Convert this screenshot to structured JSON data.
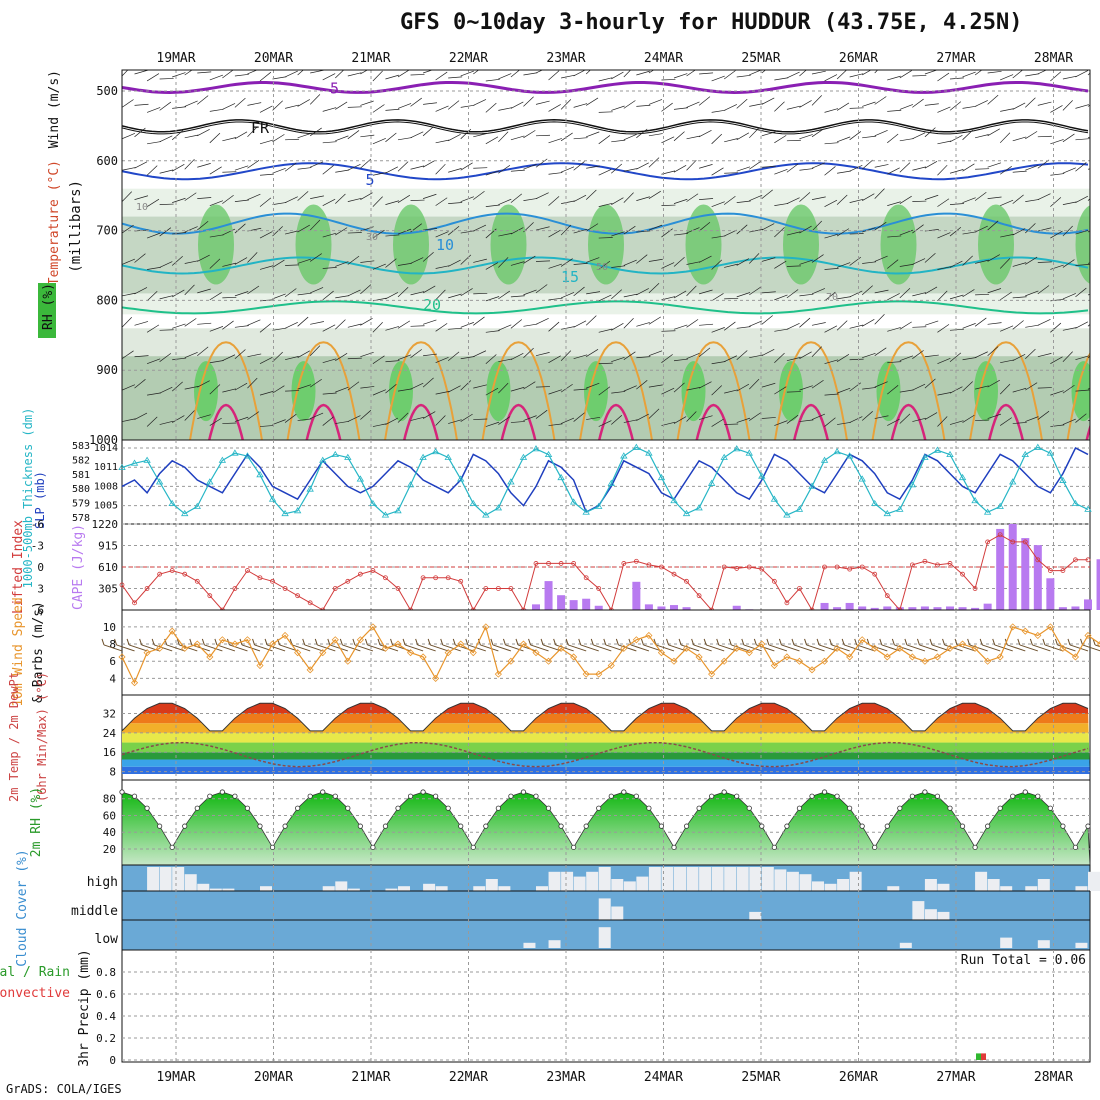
{
  "title": "GFS 0~10day 3-hourly for HUDDUR (43.75E, 4.25N)",
  "credit": "GrADS: COLA/IGES",
  "colors": {
    "grid": "#9a9a9a",
    "slp": "#1f3fbf",
    "thickness": "#26b6c6",
    "lifted": "#d23b3b",
    "cape": "#b87af0",
    "wind10": "#e8952c",
    "barb": "#6b4e2a",
    "rhLine": "#2a8a2a",
    "cloud": "#6aa9d6",
    "cloudFill": "#eceef2",
    "precipRain": "#2fb82f",
    "precipConv": "#e03a3a"
  },
  "chart_data": [
    {
      "type": "heatmap",
      "name": "upper-air",
      "x_dates": [
        "19MAR",
        "20MAR",
        "21MAR",
        "22MAR",
        "23MAR",
        "24MAR",
        "25MAR",
        "26MAR",
        "27MAR",
        "28MAR"
      ],
      "y_ticks": [
        500,
        600,
        700,
        800,
        900,
        1000
      ],
      "ylabel_wind": "Wind (m/s)",
      "ylabel_temp": "Temperature (°C)",
      "ylabel_units": "(millibars)",
      "rh_legend": "RH (%)",
      "isotherm_labels": [
        "-5",
        "FR",
        "5",
        "10",
        "15",
        "20"
      ],
      "rh_contour_labels": [
        "10",
        "30",
        "50",
        "70"
      ]
    },
    {
      "type": "line",
      "name": "slp-thickness",
      "ylabel_left": "1000-500mb Thickness (dm)",
      "ylabel_right": "SLP (mb)",
      "thickness_ticks": [
        578,
        579,
        580,
        581,
        582,
        583
      ],
      "slp_ticks": [
        1005,
        1008,
        1011,
        1014
      ],
      "series": [
        {
          "name": "SLP",
          "values": [
            1008,
            1009,
            1007,
            1010,
            1012,
            1011,
            1009,
            1008,
            1007,
            1010,
            1013,
            1011,
            1008,
            1007,
            1006,
            1009,
            1012,
            1010,
            1008,
            1007,
            1008,
            1010,
            1012,
            1011,
            1009,
            1008,
            1007,
            1009,
            1013,
            1012,
            1010,
            1007,
            1005,
            1008,
            1012,
            1011,
            1009,
            1004,
            1005,
            1008,
            1012,
            1011,
            1010,
            1007,
            1006,
            1009,
            1012,
            1011,
            1009,
            1007,
            1006,
            1009,
            1013,
            1012,
            1010,
            1008,
            1007,
            1010,
            1013,
            1012,
            1010,
            1007,
            1006,
            1009,
            1013,
            1012,
            1010,
            1008,
            1007,
            1010,
            1013,
            1012,
            1010,
            1008,
            1007,
            1010,
            1014,
            1013
          ]
        },
        {
          "name": "Thickness",
          "values": [
            581.5,
            581.8,
            582,
            580.5,
            579,
            578.3,
            578.8,
            580.5,
            582,
            582.5,
            582.3,
            581,
            579.3,
            578.3,
            578.5,
            580,
            582,
            582.4,
            582.2,
            580.7,
            579,
            578.2,
            578.5,
            580.3,
            582.2,
            582.6,
            582.2,
            580.7,
            579,
            578.2,
            578.7,
            580.5,
            582.2,
            582.8,
            582.4,
            580.8,
            579.1,
            578.4,
            578.8,
            580.4,
            582.3,
            582.9,
            582.5,
            580.8,
            579.2,
            578.3,
            578.7,
            580.4,
            582.2,
            582.8,
            582.5,
            580.9,
            579.3,
            578.2,
            578.6,
            580.2,
            582,
            582.6,
            582.3,
            580.7,
            579,
            578.3,
            578.6,
            580.3,
            582.2,
            582.7,
            582.4,
            580.8,
            579.2,
            578.4,
            578.8,
            580.5,
            582.4,
            582.9,
            582.5,
            580.6,
            579,
            578.6
          ]
        }
      ]
    },
    {
      "type": "bar",
      "name": "lifted-cape",
      "ylabel_left": "Lifted Index",
      "ylabel_right": "CAPE (J/kg)",
      "li_ticks": [
        -6,
        -3,
        0,
        3,
        6
      ],
      "cape_ticks": [
        305,
        610,
        915,
        1220
      ],
      "series": [
        {
          "name": "Lifted Index",
          "values": [
            2.5,
            5,
            3,
            1,
            0.5,
            1,
            2,
            4,
            6,
            3,
            0.5,
            1.5,
            2,
            3,
            4,
            5,
            6,
            3,
            2,
            1,
            0.5,
            1.5,
            3,
            6,
            1.5,
            1.5,
            1.5,
            2,
            6,
            3,
            3,
            3,
            6,
            -0.5,
            -0.5,
            -0.5,
            -0.5,
            1.5,
            3,
            6,
            -0.5,
            -0.8,
            -0.3,
            0,
            1,
            2,
            4,
            6,
            0,
            0.2,
            0,
            0.3,
            2,
            5,
            3,
            6,
            0,
            0,
            0.3,
            0,
            1,
            4,
            6,
            -0.3,
            -0.8,
            -0.3,
            -0.5,
            1,
            3,
            -3.5,
            -4.5,
            -3.5,
            -3.5,
            -1,
            0.5,
            0.5,
            -1,
            -1
          ]
        },
        {
          "name": "CAPE",
          "values": [
            0,
            0,
            0,
            0,
            0,
            0,
            0,
            0,
            0,
            0,
            0,
            0,
            0,
            0,
            0,
            0,
            0,
            0,
            0,
            0,
            0,
            0,
            0,
            0,
            0,
            0,
            0,
            0,
            0,
            0,
            0,
            0,
            10,
            80,
            410,
            210,
            140,
            160,
            60,
            0,
            0,
            400,
            80,
            50,
            70,
            40,
            0,
            0,
            0,
            60,
            10,
            0,
            0,
            0,
            0,
            0,
            100,
            40,
            100,
            50,
            30,
            50,
            40,
            40,
            50,
            40,
            50,
            40,
            30,
            90,
            1150,
            1220,
            1020,
            920,
            450,
            40,
            50,
            150,
            720,
            720,
            720,
            610,
            150
          ]
        }
      ]
    },
    {
      "type": "line",
      "name": "wind10",
      "ylabel_left": "10m Wind Speed",
      "ylabel_right": "& Barbs (m/s)",
      "y_ticks": [
        4,
        6,
        8,
        10
      ],
      "values": [
        6.5,
        3.5,
        7,
        7.5,
        9.5,
        7.5,
        8,
        6.5,
        8.5,
        8,
        8.5,
        5.5,
        8,
        9,
        7,
        5,
        7,
        8.5,
        6,
        8.5,
        10,
        7.5,
        8,
        7,
        6.5,
        4,
        7,
        8,
        7,
        10,
        4.5,
        6,
        8,
        7,
        6,
        7.5,
        6.5,
        4.5,
        4.5,
        5.5,
        7.5,
        8.5,
        9,
        7,
        6,
        7.5,
        6.5,
        4.5,
        6,
        7.5,
        7,
        8,
        5.5,
        6.5,
        6,
        5,
        6,
        7.5,
        6.5,
        8.5,
        7.5,
        6.5,
        7.5,
        6.5,
        6,
        6.5,
        7.5,
        8,
        7.5,
        6,
        6.5,
        10,
        9.5,
        9,
        10,
        7.5,
        6.5,
        9,
        8,
        11,
        10.5,
        10,
        9,
        9.5
      ]
    },
    {
      "type": "area",
      "name": "temp-dewpt",
      "ylabel_left": "2m Temp / 2m DewPt",
      "ylabel_right": "(6hr Min/Max) (°C)",
      "y_ticks": [
        8,
        16,
        24,
        32
      ],
      "temp_peak": 36.5,
      "temp_min": 22,
      "dew_range": [
        10,
        20
      ]
    },
    {
      "type": "area",
      "name": "rh2m",
      "ylabel": "2m RH (%)",
      "y_ticks": [
        20,
        40,
        60,
        80
      ],
      "rh_min": 22,
      "rh_max": 88
    },
    {
      "type": "bar",
      "name": "cloud",
      "ylabel": "Cloud Cover (%)",
      "levels": [
        "high",
        "middle",
        "low"
      ]
    },
    {
      "type": "bar",
      "name": "precip",
      "ylabel_left": "Total / Rain",
      "ylabel_conv": "Convective",
      "ylabel_right": "3hr Precip (mm)",
      "y_ticks": [
        0,
        0.2,
        0.4,
        0.6,
        0.8
      ],
      "run_total": "Run Total = 0.06",
      "bar_date": "27MAR",
      "bar_value": 0.06
    }
  ]
}
